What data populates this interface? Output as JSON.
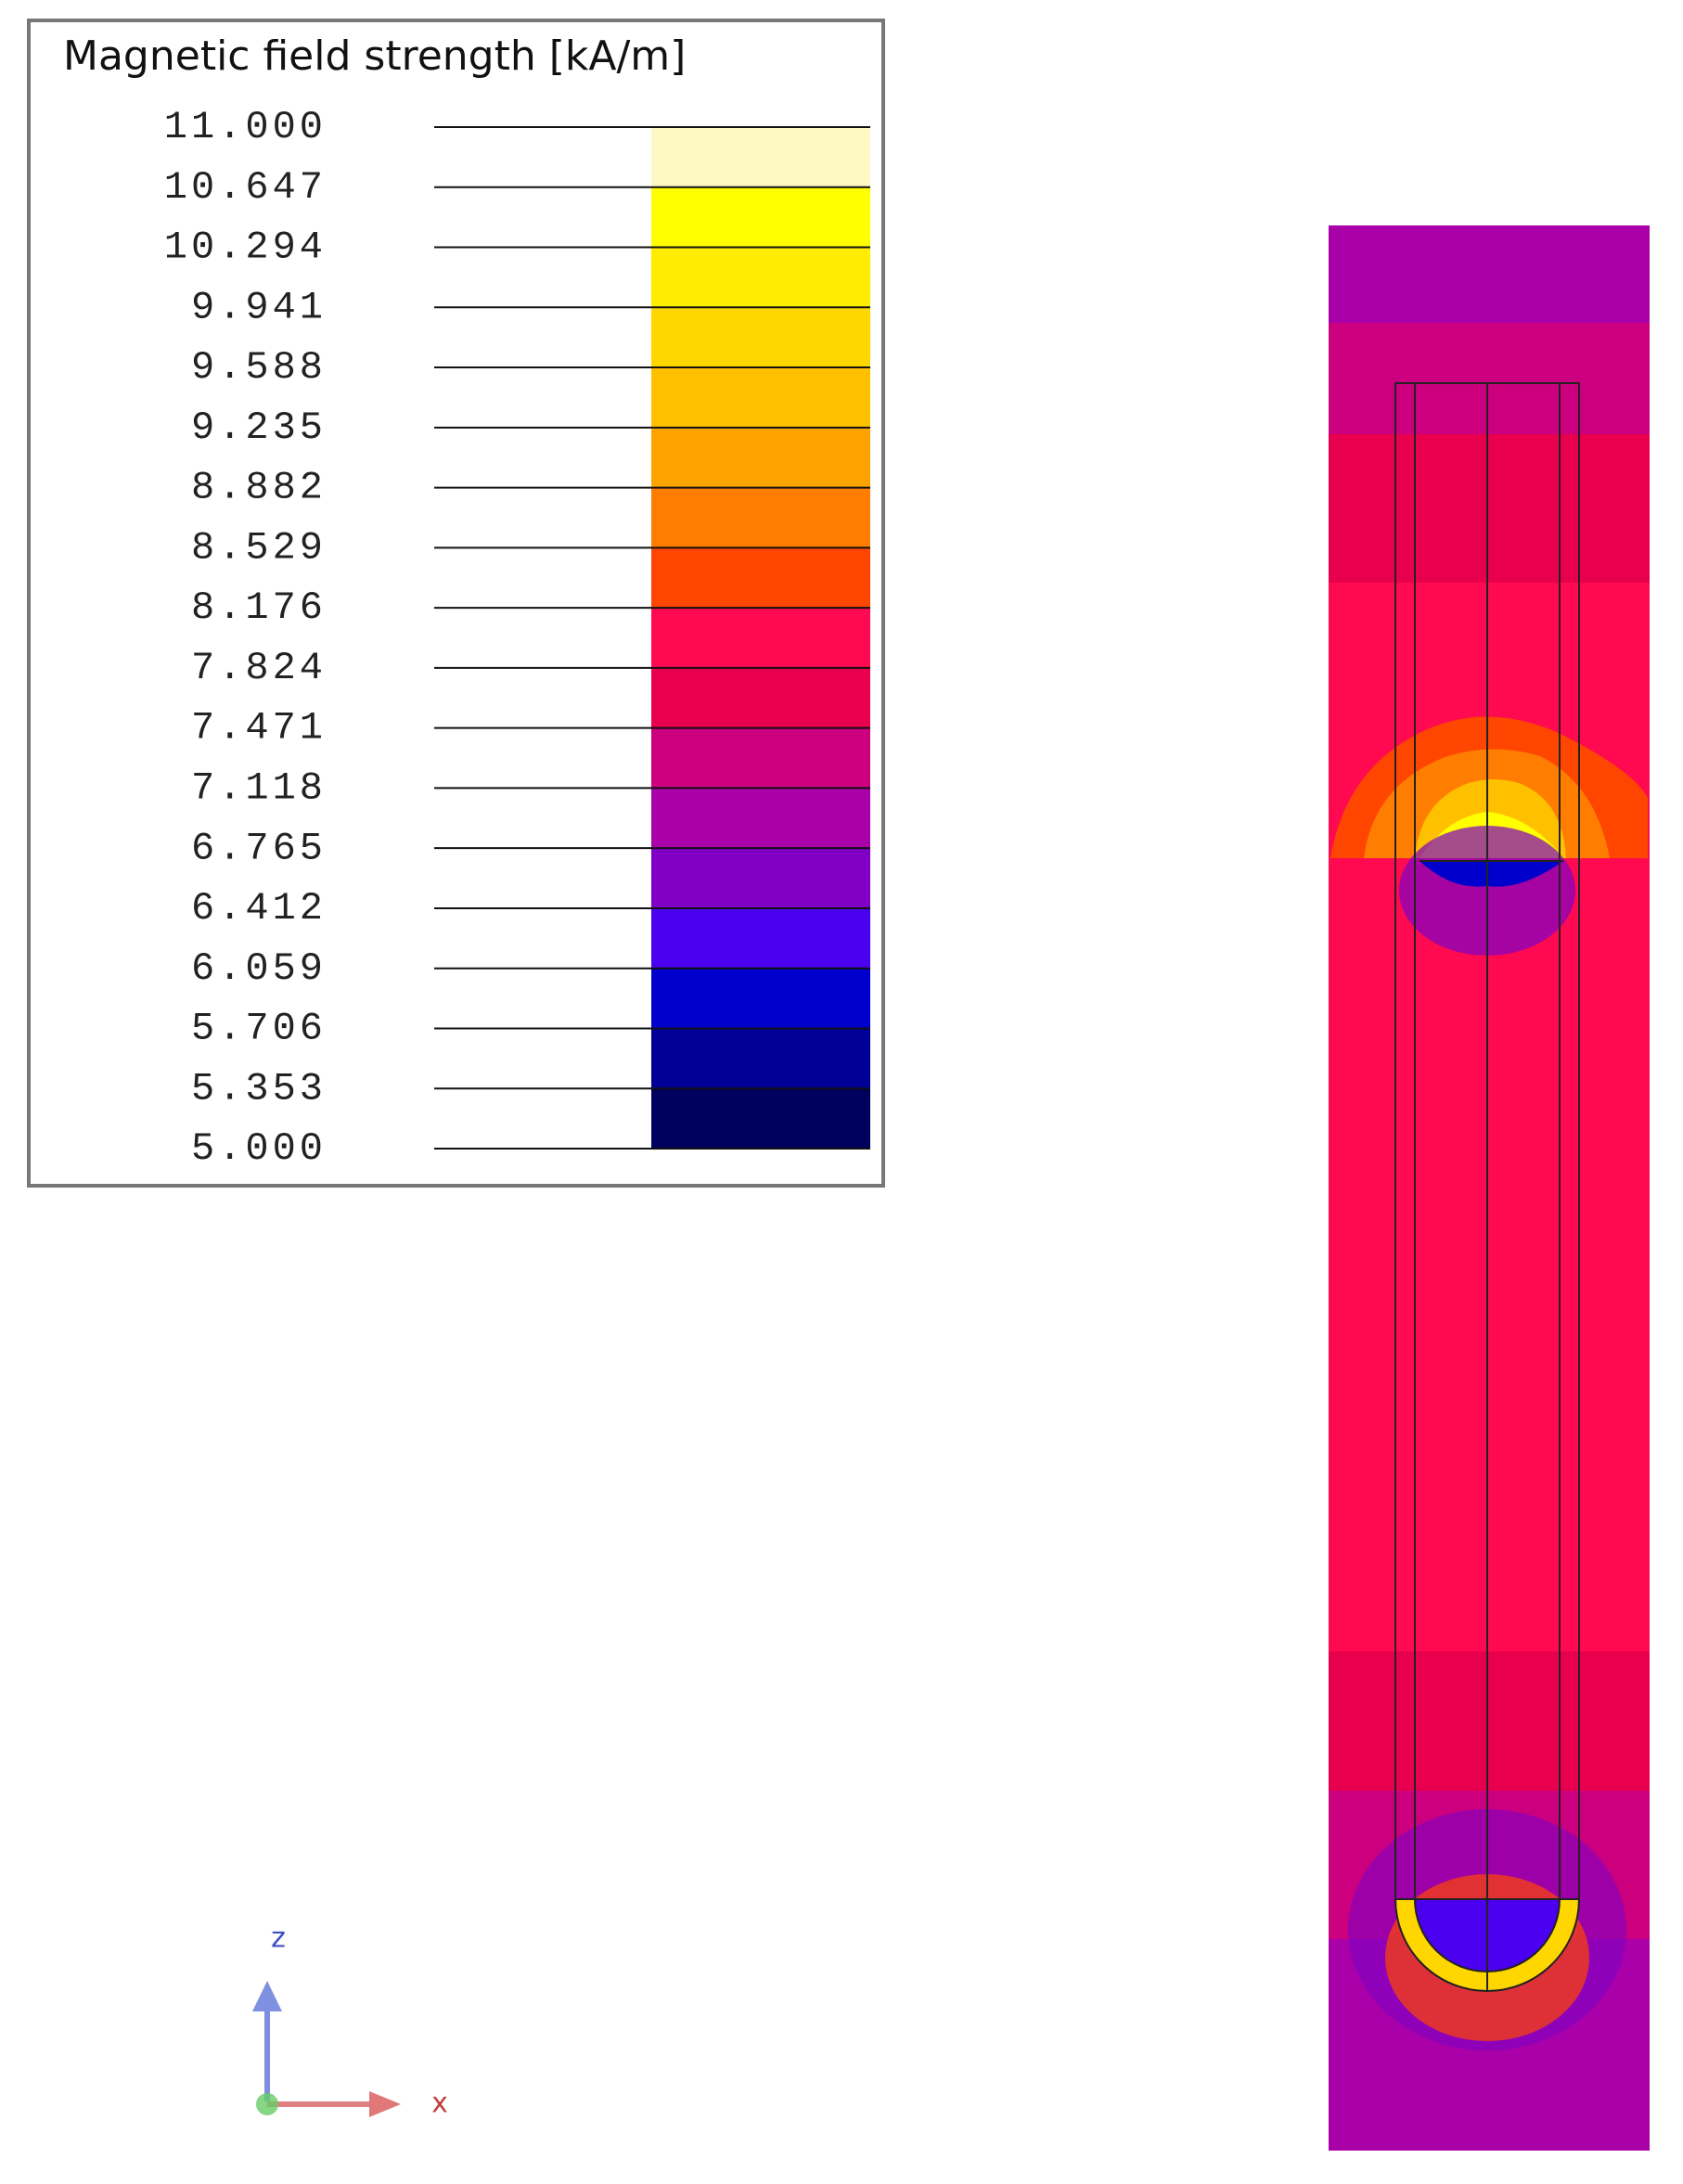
{
  "legend": {
    "title": "Magnetic field strength [kA/m]",
    "labels": [
      "11.000",
      "10.647",
      "10.294",
      "9.941",
      "9.588",
      "9.235",
      "8.882",
      "8.529",
      "8.176",
      "7.824",
      "7.471",
      "7.118",
      "6.765",
      "6.412",
      "6.059",
      "5.706",
      "5.353",
      "5.000"
    ],
    "colors": [
      "#fdf8c4",
      "#ffff00",
      "#ffec00",
      "#ffd600",
      "#ffc000",
      "#ffa300",
      "#ff7d00",
      "#ff4600",
      "#ff0a50",
      "#e8004e",
      "#cc007e",
      "#a900a9",
      "#7f00c4",
      "#4c00f0",
      "#0000cc",
      "#000096",
      "#00005e"
    ]
  },
  "axes": {
    "z": "z",
    "x": "x"
  }
}
